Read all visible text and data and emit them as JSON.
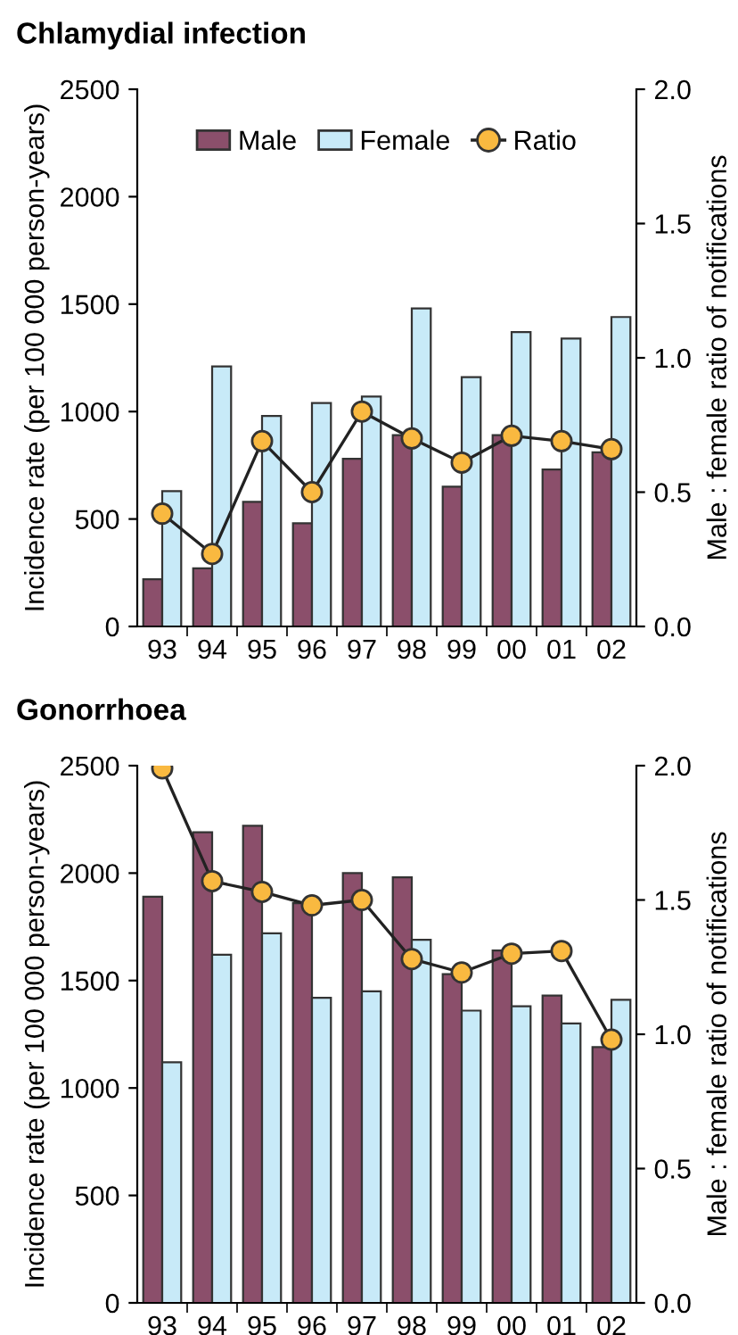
{
  "chart_data": [
    {
      "type": "bar",
      "title": "Chlamydial infection",
      "ylabel": "Incidence rate (per 100 000 person-years)",
      "y2label": "Male : female ratio of notifications",
      "categories": [
        "93",
        "94",
        "95",
        "96",
        "97",
        "98",
        "99",
        "00",
        "01",
        "02"
      ],
      "series": [
        {
          "name": "Male",
          "color": "#8b4f6b",
          "values": [
            220,
            270,
            580,
            480,
            780,
            890,
            650,
            890,
            730,
            810
          ]
        },
        {
          "name": "Female",
          "color": "#c8eaf8",
          "values": [
            630,
            1210,
            980,
            1040,
            1070,
            1480,
            1160,
            1370,
            1340,
            1440
          ]
        },
        {
          "name": "Ratio",
          "type": "line",
          "axis": "y2",
          "color": "#f9b940",
          "marker": "circle",
          "values": [
            0.42,
            0.27,
            0.69,
            0.5,
            0.8,
            0.7,
            0.61,
            0.71,
            0.69,
            0.66
          ]
        }
      ],
      "ylim": [
        0,
        2500
      ],
      "yticks": [
        0,
        500,
        1000,
        1500,
        2000,
        2500
      ],
      "y2lim": [
        0,
        2.0
      ],
      "y2ticks": [
        {
          "value": 0,
          "label": "0.0"
        },
        {
          "value": 0.5,
          "label": "0.5"
        },
        {
          "value": 1,
          "label": "1.0"
        },
        {
          "value": 1.5,
          "label": "1.5"
        },
        {
          "value": 2,
          "label": "2.0"
        }
      ],
      "grid": false,
      "legend": "top"
    },
    {
      "type": "bar",
      "title": "Gonorrhoea",
      "ylabel": "Incidence rate (per 100 000 person-years)",
      "y2label": "Male : female ratio of notifications",
      "categories": [
        "93",
        "94",
        "95",
        "96",
        "97",
        "98",
        "99",
        "00",
        "01",
        "02"
      ],
      "series": [
        {
          "color": "#8b4f6b",
          "values": [
            1890,
            2190,
            2220,
            1860,
            2000,
            1980,
            1530,
            1640,
            1430,
            1190
          ]
        },
        {
          "color": "#c8eaf8",
          "values": [
            1120,
            1620,
            1720,
            1420,
            1450,
            1690,
            1360,
            1380,
            1300,
            1410
          ]
        },
        {
          "type": "line",
          "axis": "y2",
          "color": "#f9b940",
          "marker": "circle",
          "values": [
            1.99,
            1.57,
            1.53,
            1.48,
            1.5,
            1.28,
            1.23,
            1.3,
            1.31,
            0.98
          ]
        }
      ],
      "ylim": [
        0,
        2500
      ],
      "yticks": [
        0,
        500,
        1000,
        1500,
        2000,
        2500
      ],
      "y2lim": [
        0,
        2.0
      ],
      "y2ticks": [
        {
          "value": 0,
          "label": "0.0"
        },
        {
          "value": 0.5,
          "label": "0.5"
        },
        {
          "value": 1,
          "label": "1.0"
        },
        {
          "value": 1.5,
          "label": "1.5"
        },
        {
          "value": 2,
          "label": "2.0"
        }
      ],
      "grid": false
    }
  ]
}
